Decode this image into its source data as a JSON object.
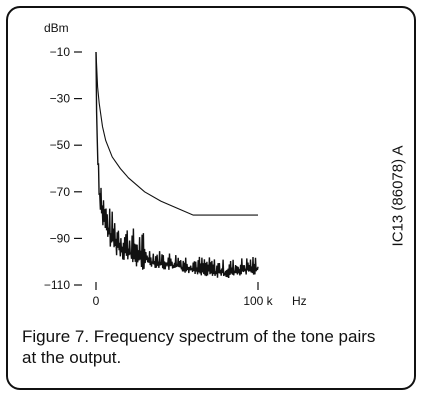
{
  "chart_data": {
    "type": "line",
    "ylabel": "dBm",
    "xlabel": "Hz",
    "xlim": [
      0,
      100000
    ],
    "ylim": [
      -110,
      -10
    ],
    "yticks": [
      -10,
      -30,
      -50,
      -70,
      -90,
      -110
    ],
    "ytick_labels": [
      "−10",
      "−30",
      "−50",
      "−70",
      "−90",
      "−110"
    ],
    "xticks": [
      0,
      100000
    ],
    "xtick_labels": [
      "0",
      "100 k"
    ],
    "series": [
      {
        "style": "thin envelope",
        "x": [
          0,
          1000,
          2000,
          4000,
          6000,
          10000,
          15000,
          20000,
          30000,
          40000,
          50000,
          60000,
          70000,
          80000,
          90000,
          100000
        ],
        "y": [
          -10,
          -25,
          -32,
          -42,
          -48,
          -55,
          -60,
          -64,
          -70,
          -74,
          -77,
          -80,
          -80,
          -80,
          -80,
          -80
        ]
      },
      {
        "style": "noisy spectrum",
        "x": [
          0,
          500,
          1000,
          2000,
          4000,
          6000,
          8000,
          10000,
          12000,
          15000,
          20000,
          25000,
          30000,
          40000,
          50000,
          60000,
          70000,
          80000,
          90000,
          100000
        ],
        "y": [
          -10,
          -40,
          -55,
          -70,
          -80,
          -85,
          -88,
          -90,
          -92,
          -94,
          -96,
          -98,
          -99,
          -101,
          -102,
          -103,
          -104,
          -105,
          -104,
          -103
        ]
      }
    ]
  },
  "caption": "Figure 7. Frequency spectrum of the tone pairs at the output.",
  "side_code": "IC13 (86078) A"
}
